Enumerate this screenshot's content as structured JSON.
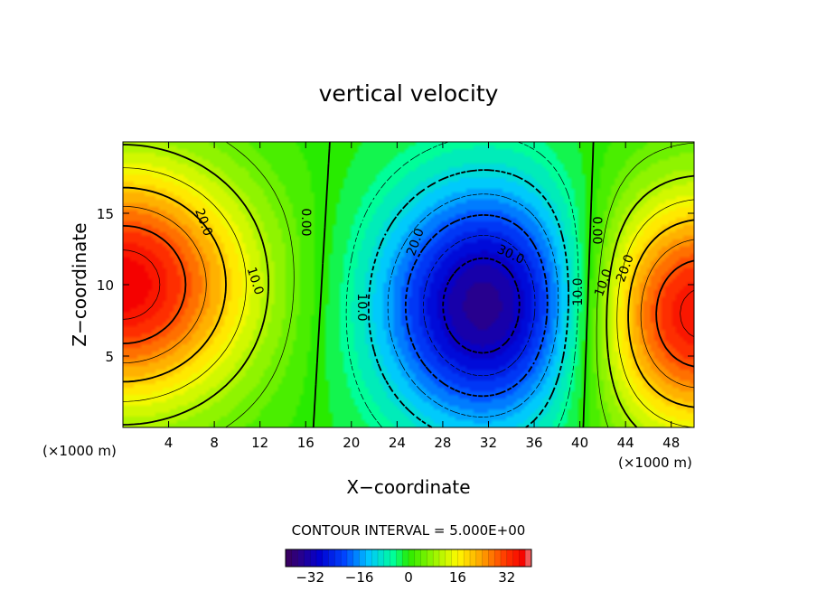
{
  "chart_data": {
    "type": "heatmap",
    "title": "vertical velocity",
    "xlabel": "X−coordinate",
    "ylabel": "Z−coordinate",
    "x_unit_label": "(×1000 m)",
    "xlim": [
      0,
      50
    ],
    "ylim": [
      0,
      20
    ],
    "x_ticks": [
      4,
      8,
      12,
      16,
      20,
      24,
      28,
      32,
      36,
      40,
      44,
      48
    ],
    "y_ticks": [
      5,
      10,
      15
    ],
    "contour_interval_text": "CONTOUR INTERVAL = 5.000E+00",
    "contour_interval": 5,
    "contour_labels": [
      "20.0",
      "10.0",
      "0.00",
      "20.0",
      "10.0",
      "30.0",
      "10.0",
      "0.00",
      "10.0",
      "20.0"
    ],
    "colorbar": {
      "range": [
        -40,
        40
      ],
      "ticks": [
        -32,
        -16,
        0,
        16,
        32
      ],
      "tick_labels": [
        "−32",
        "−16",
        "0",
        "16",
        "32"
      ]
    },
    "features": [
      {
        "kind": "max",
        "x": 0,
        "z": 10,
        "value": 38
      },
      {
        "kind": "min",
        "x": 32.5,
        "z": 8.5,
        "value": -38
      },
      {
        "kind": "max",
        "x": 50,
        "z": 8,
        "value": 38
      }
    ],
    "colormap": "rainbow"
  }
}
